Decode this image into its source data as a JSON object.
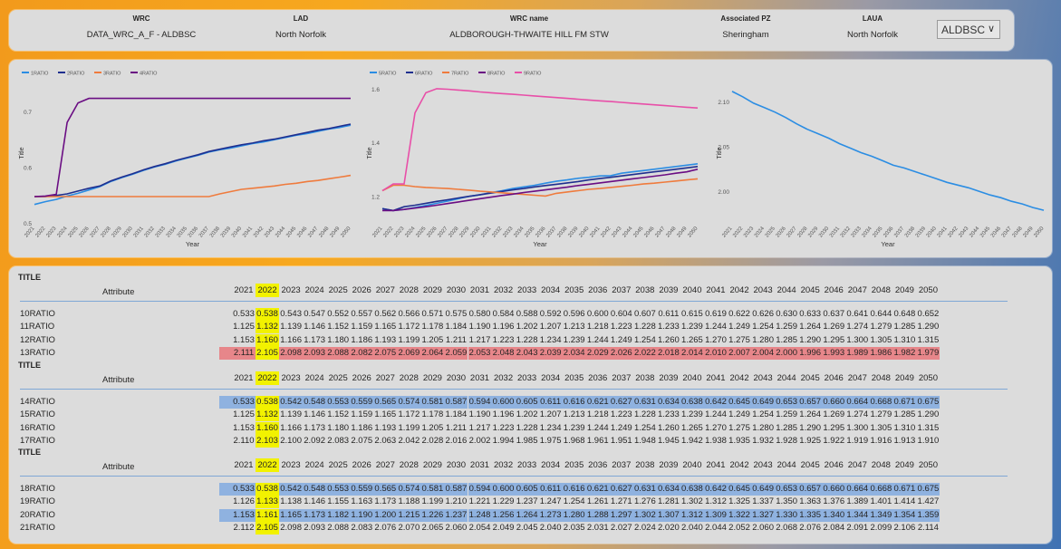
{
  "header": {
    "columns": [
      {
        "label": "WRC",
        "value": "DATA_WRC_A_F - ALDBSC"
      },
      {
        "label": "LAD",
        "value": "North Norfolk"
      },
      {
        "label": "WRC name",
        "value": "ALDBOROUGH-THWAITE HILL FM STW"
      },
      {
        "label": "Associated PZ",
        "value": "Sheringham"
      },
      {
        "label": "LAUA",
        "value": "North Norfolk"
      }
    ],
    "dropdown": "ALDBSC"
  },
  "chart_data": [
    {
      "type": "line",
      "xlabel": "Year",
      "ylabel": "Title",
      "x": [
        2021,
        2022,
        2023,
        2024,
        2025,
        2026,
        2027,
        2028,
        2029,
        2030,
        2031,
        2032,
        2033,
        2034,
        2035,
        2036,
        2037,
        2038,
        2039,
        2040,
        2041,
        2042,
        2043,
        2044,
        2045,
        2046,
        2047,
        2048,
        2049,
        2050
      ],
      "yticks": [
        0.5,
        0.6,
        0.7
      ],
      "ylim": [
        0.5,
        0.75
      ],
      "legend": "top-left",
      "series": [
        {
          "name": "1RATIO",
          "color": "#2b8de3",
          "values": [
            0.533,
            0.538,
            0.542,
            0.548,
            0.553,
            0.559,
            0.565,
            0.574,
            0.581,
            0.587,
            0.594,
            0.6,
            0.605,
            0.611,
            0.616,
            0.621,
            0.627,
            0.631,
            0.634,
            0.638,
            0.642,
            0.645,
            0.649,
            0.653,
            0.657,
            0.66,
            0.664,
            0.668,
            0.671,
            0.675
          ]
        },
        {
          "name": "2RATIO",
          "color": "#1f2f8f",
          "values": [
            0.547,
            0.547,
            0.549,
            0.552,
            0.557,
            0.562,
            0.566,
            0.575,
            0.582,
            0.588,
            0.595,
            0.601,
            0.606,
            0.612,
            0.617,
            0.622,
            0.628,
            0.632,
            0.636,
            0.64,
            0.643,
            0.647,
            0.65,
            0.654,
            0.658,
            0.662,
            0.666,
            0.669,
            0.673,
            0.677
          ]
        },
        {
          "name": "3RATIO",
          "color": "#ef7b3d",
          "values": [
            0.547,
            0.547,
            0.547,
            0.547,
            0.547,
            0.547,
            0.547,
            0.547,
            0.547,
            0.547,
            0.547,
            0.547,
            0.547,
            0.547,
            0.547,
            0.547,
            0.547,
            0.552,
            0.556,
            0.56,
            0.562,
            0.564,
            0.566,
            0.569,
            0.571,
            0.574,
            0.576,
            0.579,
            0.582,
            0.585
          ]
        },
        {
          "name": "4RATIO",
          "color": "#6a0d83",
          "values": [
            0.547,
            0.548,
            0.551,
            0.68,
            0.715,
            0.723,
            0.723,
            0.723,
            0.723,
            0.723,
            0.723,
            0.723,
            0.723,
            0.723,
            0.723,
            0.723,
            0.723,
            0.723,
            0.723,
            0.723,
            0.723,
            0.723,
            0.723,
            0.723,
            0.723,
            0.723,
            0.723,
            0.723,
            0.723,
            0.723
          ]
        }
      ]
    },
    {
      "type": "line",
      "xlabel": "Year",
      "ylabel": "Title",
      "x": [
        2021,
        2022,
        2023,
        2024,
        2025,
        2026,
        2027,
        2028,
        2029,
        2030,
        2031,
        2032,
        2033,
        2034,
        2035,
        2036,
        2037,
        2038,
        2039,
        2040,
        2041,
        2042,
        2043,
        2044,
        2045,
        2046,
        2047,
        2048,
        2049,
        2050
      ],
      "yticks": [
        1.2,
        1.4,
        1.6
      ],
      "ylim": [
        1.1,
        1.62
      ],
      "legend": "top-left",
      "series": [
        {
          "name": "5RATIO",
          "color": "#2b8de3",
          "values": [
            1.153,
            1.146,
            1.15,
            1.157,
            1.165,
            1.173,
            1.181,
            1.19,
            1.199,
            1.205,
            1.213,
            1.22,
            1.228,
            1.234,
            1.24,
            1.248,
            1.255,
            1.26,
            1.266,
            1.27,
            1.275,
            1.276,
            1.285,
            1.29,
            1.295,
            1.3,
            1.305,
            1.31,
            1.315,
            1.32
          ]
        },
        {
          "name": "6RATIO",
          "color": "#1f2f8f",
          "values": [
            1.153,
            1.146,
            1.16,
            1.166,
            1.173,
            1.18,
            1.186,
            1.193,
            1.199,
            1.205,
            1.211,
            1.217,
            1.223,
            1.228,
            1.234,
            1.239,
            1.244,
            1.249,
            1.254,
            1.26,
            1.265,
            1.27,
            1.275,
            1.28,
            1.285,
            1.29,
            1.295,
            1.3,
            1.305,
            1.31
          ]
        },
        {
          "name": "7RATIO",
          "color": "#ef7b3d",
          "values": [
            1.22,
            1.24,
            1.24,
            1.235,
            1.232,
            1.23,
            1.228,
            1.225,
            1.222,
            1.218,
            1.215,
            1.212,
            1.209,
            1.206,
            1.203,
            1.2,
            1.21,
            1.215,
            1.22,
            1.225,
            1.228,
            1.232,
            1.236,
            1.24,
            1.245,
            1.248,
            1.252,
            1.256,
            1.26,
            1.264
          ]
        },
        {
          "name": "8RATIO",
          "color": "#6a0d83",
          "values": [
            1.146,
            1.146,
            1.15,
            1.155,
            1.16,
            1.166,
            1.172,
            1.178,
            1.184,
            1.19,
            1.196,
            1.202,
            1.207,
            1.213,
            1.218,
            1.223,
            1.228,
            1.233,
            1.239,
            1.244,
            1.249,
            1.254,
            1.259,
            1.264,
            1.269,
            1.274,
            1.279,
            1.285,
            1.29,
            1.3
          ]
        },
        {
          "name": "9RATIO",
          "color": "#e84fa8",
          "values": [
            1.22,
            1.245,
            1.245,
            1.51,
            1.585,
            1.6,
            1.598,
            1.595,
            1.592,
            1.588,
            1.585,
            1.582,
            1.579,
            1.576,
            1.573,
            1.57,
            1.567,
            1.564,
            1.561,
            1.558,
            1.555,
            1.552,
            1.549,
            1.546,
            1.543,
            1.54,
            1.537,
            1.534,
            1.531,
            1.528
          ]
        }
      ]
    },
    {
      "type": "line",
      "xlabel": "Year",
      "ylabel": "Title",
      "x": [
        2021,
        2022,
        2023,
        2024,
        2025,
        2026,
        2027,
        2028,
        2029,
        2030,
        2031,
        2032,
        2033,
        2034,
        2035,
        2036,
        2037,
        2038,
        2039,
        2040,
        2041,
        2042,
        2043,
        2044,
        2045,
        2046,
        2047,
        2048,
        2049,
        2050
      ],
      "yticks": [
        2.0,
        2.05,
        2.1
      ],
      "ylim": [
        1.965,
        2.12
      ],
      "series": [
        {
          "name": "",
          "color": "#2b8de3",
          "values": [
            2.111,
            2.105,
            2.098,
            2.093,
            2.088,
            2.082,
            2.075,
            2.069,
            2.064,
            2.059,
            2.053,
            2.048,
            2.043,
            2.039,
            2.034,
            2.029,
            2.026,
            2.022,
            2.018,
            2.014,
            2.01,
            2.007,
            2.004,
            2.0,
            1.996,
            1.993,
            1.989,
            1.986,
            1.982,
            1.979
          ]
        }
      ]
    }
  ],
  "table": {
    "years": [
      "2021",
      "2022",
      "2023",
      "2024",
      "2025",
      "2026",
      "2027",
      "2028",
      "2029",
      "2030",
      "2031",
      "2032",
      "2033",
      "2034",
      "2035",
      "2036",
      "2037",
      "2038",
      "2039",
      "2040",
      "2041",
      "2042",
      "2043",
      "2044",
      "2045",
      "2046",
      "2047",
      "2048",
      "2049",
      "2050"
    ],
    "attribute_label": "Attribute",
    "sections": [
      {
        "title": "TITLE",
        "rows": [
          {
            "name": "10RATIO",
            "bg": "none",
            "values": [
              "0.533",
              "0.538",
              "0.543",
              "0.547",
              "0.552",
              "0.557",
              "0.562",
              "0.566",
              "0.571",
              "0.575",
              "0.580",
              "0.584",
              "0.588",
              "0.592",
              "0.596",
              "0.600",
              "0.604",
              "0.607",
              "0.611",
              "0.615",
              "0.619",
              "0.622",
              "0.626",
              "0.630",
              "0.633",
              "0.637",
              "0.641",
              "0.644",
              "0.648",
              "0.652"
            ]
          },
          {
            "name": "11RATIO",
            "bg": "none",
            "values": [
              "1.125",
              "1.132",
              "1.139",
              "1.146",
              "1.152",
              "1.159",
              "1.165",
              "1.172",
              "1.178",
              "1.184",
              "1.190",
              "1.196",
              "1.202",
              "1.207",
              "1.213",
              "1.218",
              "1.223",
              "1.228",
              "1.233",
              "1.239",
              "1.244",
              "1.249",
              "1.254",
              "1.259",
              "1.264",
              "1.269",
              "1.274",
              "1.279",
              "1.285",
              "1.290"
            ]
          },
          {
            "name": "12RATIO",
            "bg": "none",
            "values": [
              "1.153",
              "1.160",
              "1.166",
              "1.173",
              "1.180",
              "1.186",
              "1.193",
              "1.199",
              "1.205",
              "1.211",
              "1.217",
              "1.223",
              "1.228",
              "1.234",
              "1.239",
              "1.244",
              "1.249",
              "1.254",
              "1.260",
              "1.265",
              "1.270",
              "1.275",
              "1.280",
              "1.285",
              "1.290",
              "1.295",
              "1.300",
              "1.305",
              "1.310",
              "1.315"
            ]
          },
          {
            "name": "13RATIO",
            "bg": "red",
            "values": [
              "2.111",
              "2.105",
              "2.098",
              "2.093",
              "2.088",
              "2.082",
              "2.075",
              "2.069",
              "2.064",
              "2.059",
              "2.053",
              "2.048",
              "2.043",
              "2.039",
              "2.034",
              "2.029",
              "2.026",
              "2.022",
              "2.018",
              "2.014",
              "2.010",
              "2.007",
              "2.004",
              "2.000",
              "1.996",
              "1.993",
              "1.989",
              "1.986",
              "1.982",
              "1.979"
            ]
          }
        ]
      },
      {
        "title": "TITLE",
        "rows": [
          {
            "name": "14RATIO",
            "bg": "blue",
            "values": [
              "0.533",
              "0.538",
              "0.542",
              "0.548",
              "0.553",
              "0.559",
              "0.565",
              "0.574",
              "0.581",
              "0.587",
              "0.594",
              "0.600",
              "0.605",
              "0.611",
              "0.616",
              "0.621",
              "0.627",
              "0.631",
              "0.634",
              "0.638",
              "0.642",
              "0.645",
              "0.649",
              "0.653",
              "0.657",
              "0.660",
              "0.664",
              "0.668",
              "0.671",
              "0.675"
            ]
          },
          {
            "name": "15RATIO",
            "bg": "none",
            "values": [
              "1.125",
              "1.132",
              "1.139",
              "1.146",
              "1.152",
              "1.159",
              "1.165",
              "1.172",
              "1.178",
              "1.184",
              "1.190",
              "1.196",
              "1.202",
              "1.207",
              "1.213",
              "1.218",
              "1.223",
              "1.228",
              "1.233",
              "1.239",
              "1.244",
              "1.249",
              "1.254",
              "1.259",
              "1.264",
              "1.269",
              "1.274",
              "1.279",
              "1.285",
              "1.290"
            ]
          },
          {
            "name": "16RATIO",
            "bg": "none",
            "values": [
              "1.153",
              "1.160",
              "1.166",
              "1.173",
              "1.180",
              "1.186",
              "1.193",
              "1.199",
              "1.205",
              "1.211",
              "1.217",
              "1.223",
              "1.228",
              "1.234",
              "1.239",
              "1.244",
              "1.249",
              "1.254",
              "1.260",
              "1.265",
              "1.270",
              "1.275",
              "1.280",
              "1.285",
              "1.290",
              "1.295",
              "1.300",
              "1.305",
              "1.310",
              "1.315"
            ]
          },
          {
            "name": "17RATIO",
            "bg": "none",
            "values": [
              "2.110",
              "2.103",
              "2.100",
              "2.092",
              "2.083",
              "2.075",
              "2.063",
              "2.042",
              "2.028",
              "2.016",
              "2.002",
              "1.994",
              "1.985",
              "1.975",
              "1.968",
              "1.961",
              "1.951",
              "1.948",
              "1.945",
              "1.942",
              "1.938",
              "1.935",
              "1.932",
              "1.928",
              "1.925",
              "1.922",
              "1.919",
              "1.916",
              "1.913",
              "1.910"
            ]
          }
        ]
      },
      {
        "title": "TITLE",
        "rows": [
          {
            "name": "18RATIO",
            "bg": "blue",
            "values": [
              "0.533",
              "0.538",
              "0.542",
              "0.548",
              "0.553",
              "0.559",
              "0.565",
              "0.574",
              "0.581",
              "0.587",
              "0.594",
              "0.600",
              "0.605",
              "0.611",
              "0.616",
              "0.621",
              "0.627",
              "0.631",
              "0.634",
              "0.638",
              "0.642",
              "0.645",
              "0.649",
              "0.653",
              "0.657",
              "0.660",
              "0.664",
              "0.668",
              "0.671",
              "0.675"
            ]
          },
          {
            "name": "19RATIO",
            "bg": "none",
            "values": [
              "1.126",
              "1.133",
              "1.138",
              "1.146",
              "1.155",
              "1.163",
              "1.173",
              "1.188",
              "1.199",
              "1.210",
              "1.221",
              "1.229",
              "1.237",
              "1.247",
              "1.254",
              "1.261",
              "1.271",
              "1.276",
              "1.281",
              "1.302",
              "1.312",
              "1.325",
              "1.337",
              "1.350",
              "1.363",
              "1.376",
              "1.389",
              "1.401",
              "1.414",
              "1.427"
            ]
          },
          {
            "name": "20RATIO",
            "bg": "blue",
            "values": [
              "1.153",
              "1.161",
              "1.165",
              "1.173",
              "1.182",
              "1.190",
              "1.200",
              "1.215",
              "1.226",
              "1.237",
              "1.248",
              "1.256",
              "1.264",
              "1.273",
              "1.280",
              "1.288",
              "1.297",
              "1.302",
              "1.307",
              "1.312",
              "1.309",
              "1.322",
              "1.327",
              "1.330",
              "1.335",
              "1.340",
              "1.344",
              "1.349",
              "1.354",
              "1.359"
            ]
          },
          {
            "name": "21RATIO",
            "bg": "none",
            "values": [
              "2.112",
              "2.105",
              "2.098",
              "2.093",
              "2.088",
              "2.083",
              "2.076",
              "2.070",
              "2.065",
              "2.060",
              "2.054",
              "2.049",
              "2.045",
              "2.040",
              "2.035",
              "2.031",
              "2.027",
              "2.024",
              "2.020",
              "2.040",
              "2.044",
              "2.052",
              "2.060",
              "2.068",
              "2.076",
              "2.084",
              "2.091",
              "2.099",
              "2.106",
              "2.114"
            ]
          }
        ]
      }
    ]
  }
}
